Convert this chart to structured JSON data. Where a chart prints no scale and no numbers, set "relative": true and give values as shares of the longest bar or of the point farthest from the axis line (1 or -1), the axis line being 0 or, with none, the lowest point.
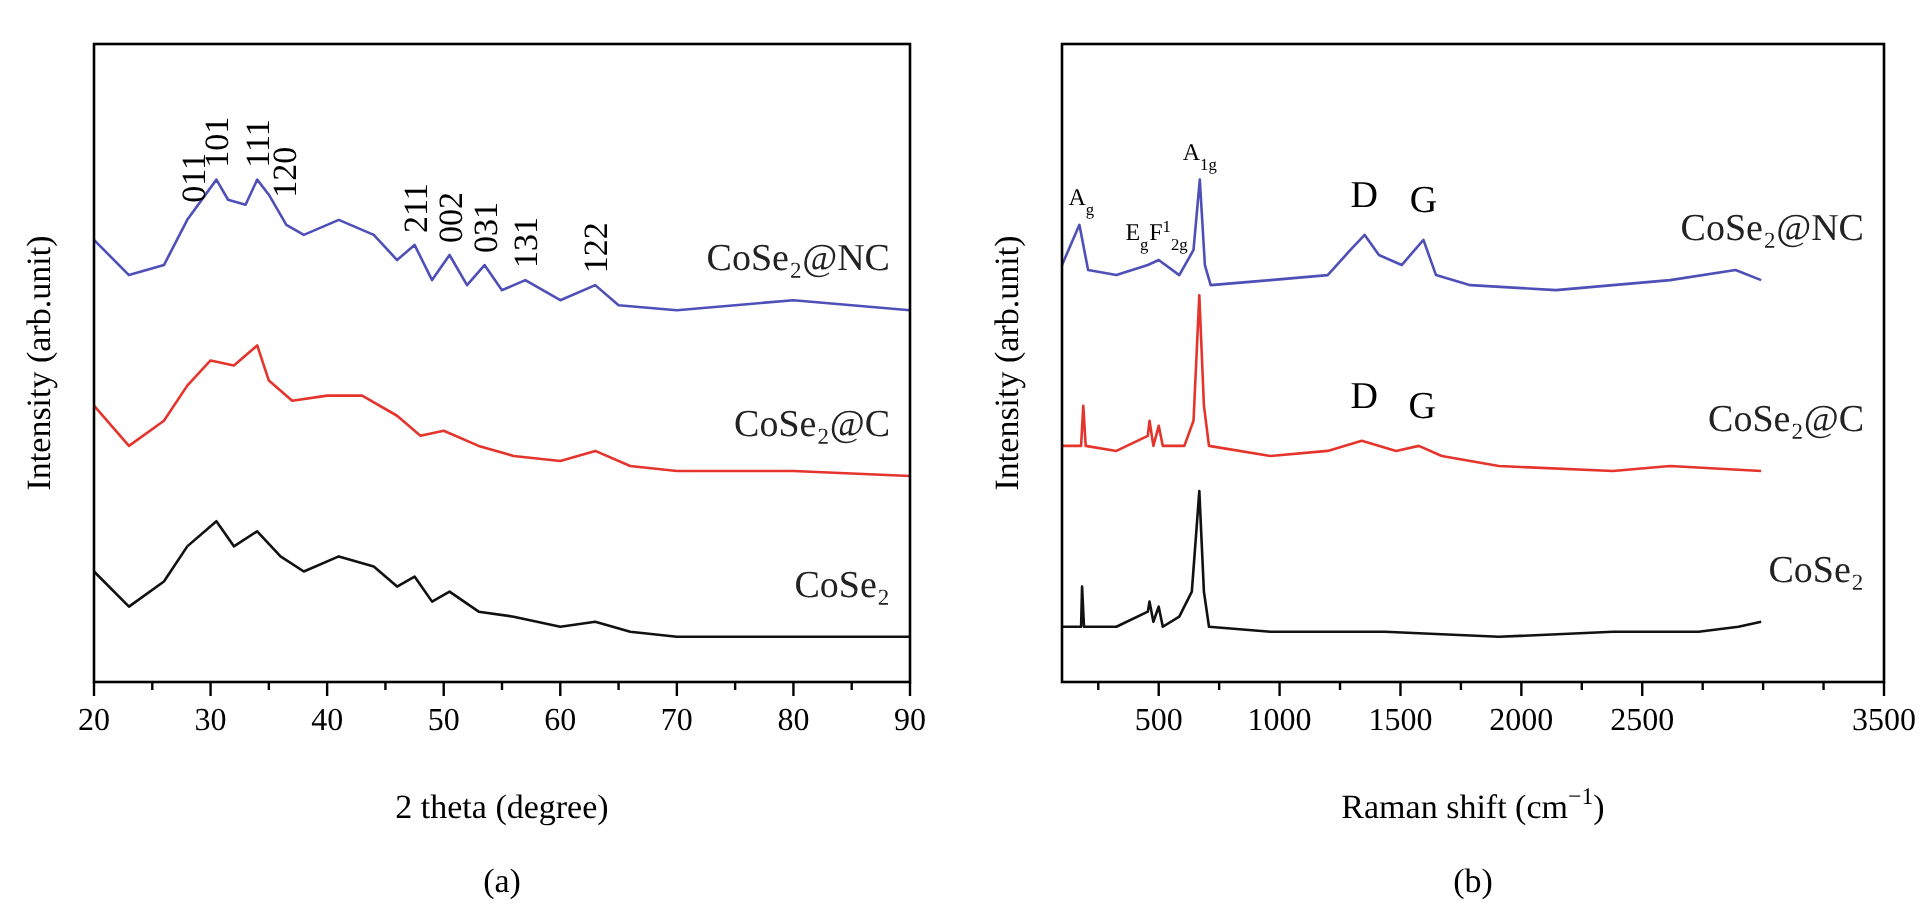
{
  "chart_data": [
    {
      "type": "line",
      "xlabel": "2 theta (degree)",
      "ylabel": "Intensity (arb.unit)",
      "relative": true,
      "tick_labels": "x",
      "xlim": [
        20,
        90
      ],
      "xticks": [
        20,
        {
          "value": 25,
          "label": null
        },
        30,
        {
          "value": 35,
          "label": null
        },
        40,
        {
          "value": 45,
          "label": null
        },
        50,
        {
          "value": 55,
          "label": null
        },
        60,
        {
          "value": 65,
          "label": null
        },
        70,
        {
          "value": 75,
          "label": null
        },
        80,
        {
          "value": 85,
          "label": null
        },
        90
      ],
      "series": [
        {
          "name": "CoSe₂@NC",
          "color": "#4f4fb8",
          "x": [
            20,
            23,
            26,
            28,
            30.5,
            31.5,
            33,
            34,
            35,
            36.5,
            38,
            41,
            44,
            46,
            47.5,
            49,
            50.5,
            52,
            53.5,
            55,
            57,
            60,
            63,
            65,
            70,
            75,
            80,
            85,
            90
          ],
          "values": [
            0.88,
            0.81,
            0.83,
            0.92,
            1.0,
            0.96,
            0.95,
            1.0,
            0.97,
            0.91,
            0.89,
            0.92,
            0.89,
            0.84,
            0.87,
            0.8,
            0.85,
            0.79,
            0.83,
            0.78,
            0.8,
            0.76,
            0.79,
            0.75,
            0.74,
            0.75,
            0.76,
            0.75,
            0.74
          ]
        },
        {
          "name": "CoSe₂@C",
          "color": "#e5342c",
          "x": [
            20,
            23,
            26,
            28,
            30,
            32,
            34,
            35,
            37,
            40,
            43,
            46,
            48,
            50,
            53,
            56,
            60,
            63,
            66,
            70,
            80,
            90
          ],
          "values": [
            0.55,
            0.47,
            0.52,
            0.59,
            0.64,
            0.63,
            0.67,
            0.6,
            0.56,
            0.57,
            0.57,
            0.53,
            0.49,
            0.5,
            0.47,
            0.45,
            0.44,
            0.46,
            0.43,
            0.42,
            0.42,
            0.41
          ]
        },
        {
          "name": "CoSe₂",
          "color": "#111111",
          "x": [
            20,
            23,
            26,
            28,
            30.5,
            32,
            34,
            36,
            38,
            41,
            44,
            46,
            47.5,
            49,
            50.5,
            53,
            56,
            60,
            63,
            66,
            70,
            80,
            90
          ],
          "values": [
            0.22,
            0.15,
            0.2,
            0.27,
            0.32,
            0.27,
            0.3,
            0.25,
            0.22,
            0.25,
            0.23,
            0.19,
            0.21,
            0.16,
            0.18,
            0.14,
            0.13,
            0.11,
            0.12,
            0.1,
            0.09,
            0.09,
            0.09
          ]
        }
      ],
      "annotations": [
        {
          "text": "011",
          "x": 28.5,
          "y": 0.93
        },
        {
          "text": "101",
          "x": 30.5,
          "y": 1.0
        },
        {
          "text": "111",
          "x": 34,
          "y": 1.0
        },
        {
          "text": "120",
          "x": 36.3,
          "y": 0.94
        },
        {
          "text": "211",
          "x": 47.5,
          "y": 0.87
        },
        {
          "text": "002",
          "x": 50.5,
          "y": 0.85
        },
        {
          "text": "031",
          "x": 53.5,
          "y": 0.83
        },
        {
          "text": "131",
          "x": 57,
          "y": 0.8
        },
        {
          "text": "122",
          "x": 63,
          "y": 0.79
        },
        "(a)"
      ]
    },
    {
      "type": "line",
      "xlabel": "Raman shift (cm$^{−1}$)",
      "ylabel": "Intensity (arb.unit)",
      "relative": true,
      "tick_labels": "x",
      "xlim": [
        100,
        3500
      ],
      "xticks": [
        {
          "value": 250,
          "label": null
        },
        500,
        {
          "value": 750,
          "label": null
        },
        1000,
        {
          "value": 1250,
          "label": null
        },
        1500,
        {
          "value": 1750,
          "label": null
        },
        2000,
        {
          "value": 2250,
          "label": null
        },
        2500,
        {
          "value": 2750,
          "label": null
        },
        {
          "value": 3000,
          "label": null
        },
        {
          "value": 3250,
          "label": null
        },
        3500
      ],
      "series": [
        {
          "name": "CoSe₂@NC",
          "color": "#4f4fb8",
          "x": [
            100,
            172,
            208,
            325,
            455,
            500,
            585,
            644,
            670,
            691,
            715,
            962,
            1199,
            1293,
            1352,
            1411,
            1505,
            1595,
            1647,
            1789,
            2143,
            2379,
            2615,
            2886,
            2992
          ],
          "values": [
            0.83,
            0.91,
            0.82,
            0.81,
            0.83,
            0.84,
            0.81,
            0.86,
            1.0,
            0.83,
            0.79,
            0.8,
            0.81,
            0.86,
            0.89,
            0.85,
            0.83,
            0.88,
            0.81,
            0.79,
            0.78,
            0.79,
            0.8,
            0.82,
            0.8
          ]
        },
        {
          "name": "CoSe₂@C",
          "color": "#e5342c",
          "x": [
            100,
            179,
            188,
            198,
            325,
            455,
            462,
            478,
            500,
            517,
            606,
            644,
            668,
            687,
            708,
            962,
            1199,
            1340,
            1482,
            1576,
            1671,
            1907,
            2379,
            2615,
            2992
          ],
          "values": [
            0.47,
            0.47,
            0.55,
            0.47,
            0.46,
            0.49,
            0.52,
            0.47,
            0.51,
            0.47,
            0.47,
            0.52,
            0.77,
            0.55,
            0.47,
            0.45,
            0.46,
            0.48,
            0.46,
            0.47,
            0.45,
            0.43,
            0.42,
            0.43,
            0.42
          ]
        },
        {
          "name": "CoSe₂",
          "color": "#111111",
          "x": [
            100,
            179,
            183,
            191,
            325,
            455,
            462,
            478,
            500,
            517,
            585,
            637,
            668,
            687,
            708,
            962,
            1435,
            1907,
            2379,
            2733,
            2898,
            2992
          ],
          "values": [
            0.11,
            0.11,
            0.19,
            0.11,
            0.11,
            0.14,
            0.16,
            0.12,
            0.15,
            0.11,
            0.13,
            0.18,
            0.38,
            0.18,
            0.11,
            0.1,
            0.1,
            0.09,
            0.1,
            0.1,
            0.11,
            0.12
          ]
        }
      ],
      "annotations": [
        {
          "text": "A$_{g}$",
          "x": 180,
          "y": 0.91
        },
        {
          "text": "E$_{g}$",
          "x": 410,
          "y": 0.84
        },
        {
          "text": "F$^{1}$$_{2g}$",
          "x": 540,
          "y": 0.84
        },
        {
          "text": "A$_{1g}$",
          "x": 670,
          "y": 1.0
        },
        {
          "text": "D",
          "x": 1350,
          "y": 0.89
        },
        {
          "text": "G",
          "x": 1595,
          "y": 0.88
        },
        {
          "text": "D",
          "x": 1350,
          "y": 0.49
        },
        {
          "text": "G",
          "x": 1590,
          "y": 0.47
        },
        "(b)"
      ]
    }
  ]
}
